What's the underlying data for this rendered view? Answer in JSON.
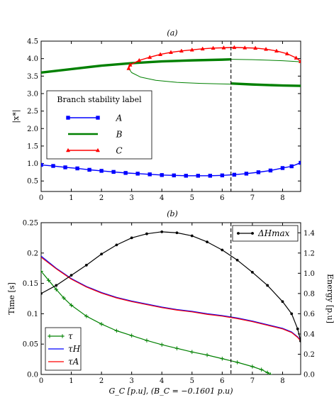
{
  "chart_data": [
    {
      "panel": "(a)",
      "type": "line",
      "title": "(a)",
      "xlabel": "",
      "ylabel": "|x*|",
      "xlim": [
        0,
        8.6
      ],
      "ylim": [
        0.2,
        4.5
      ],
      "xticks": [
        "0",
        "1",
        "2",
        "3",
        "4",
        "5",
        "6",
        "7",
        "8"
      ],
      "yticks": [
        "0.5",
        "1.0",
        "1.5",
        "2.0",
        "2.5",
        "3.0",
        "3.5",
        "4.0",
        "4.5"
      ],
      "vline_x": 6.29,
      "legend": {
        "title": "Branch stability label",
        "placement": "center-left",
        "entries": [
          "A",
          "B",
          "C"
        ]
      },
      "colors": {
        "A": "#0000ff",
        "B": "#008000",
        "C": "#ff0000"
      },
      "series": [
        {
          "name": "A",
          "marker": "square",
          "x": [
            0,
            0.4,
            0.8,
            1.2,
            1.6,
            2.0,
            2.4,
            2.8,
            3.2,
            3.6,
            4.0,
            4.4,
            4.8,
            5.2,
            5.6,
            6.0,
            6.4,
            6.8,
            7.2,
            7.6,
            8.0,
            8.3,
            8.6
          ],
          "y": [
            0.96,
            0.93,
            0.89,
            0.86,
            0.82,
            0.79,
            0.76,
            0.73,
            0.71,
            0.69,
            0.67,
            0.66,
            0.65,
            0.65,
            0.65,
            0.66,
            0.68,
            0.71,
            0.75,
            0.8,
            0.87,
            0.92,
            1.02
          ]
        },
        {
          "name": "B stable upper",
          "x": [
            0,
            1,
            2,
            3,
            4,
            5,
            6,
            6.29
          ],
          "y": [
            3.6,
            3.7,
            3.8,
            3.87,
            3.92,
            3.95,
            3.97,
            3.98
          ]
        },
        {
          "name": "B unstable upper",
          "x": [
            6.29,
            7,
            8,
            8.6
          ],
          "y": [
            3.98,
            3.97,
            3.94,
            3.91
          ]
        },
        {
          "name": "B unstable lower",
          "x": [
            2.9,
            3.0,
            3.3,
            3.8,
            4.5,
            5.3,
            6.29
          ],
          "y": [
            3.72,
            3.6,
            3.47,
            3.38,
            3.32,
            3.29,
            3.27
          ]
        },
        {
          "name": "B stable lower",
          "x": [
            6.29,
            7,
            8,
            8.6
          ],
          "y": [
            3.29,
            3.26,
            3.23,
            3.22
          ]
        },
        {
          "name": "C",
          "marker": "triangle",
          "x": [
            2.9,
            2.95,
            3.25,
            3.6,
            3.95,
            4.3,
            4.65,
            5.0,
            5.35,
            5.7,
            6.05,
            6.4,
            6.75,
            7.1,
            7.45,
            7.8,
            8.15,
            8.45,
            8.6
          ],
          "y": [
            3.72,
            3.82,
            3.95,
            4.04,
            4.12,
            4.18,
            4.22,
            4.25,
            4.28,
            4.3,
            4.31,
            4.32,
            4.31,
            4.3,
            4.27,
            4.22,
            4.14,
            4.02,
            3.92
          ]
        }
      ]
    },
    {
      "panel": "(b)",
      "type": "line",
      "title": "(b)",
      "xlabel": "G_C [p.u], (B_C = −0.1601 p.u)",
      "ylabel": "Time [s]",
      "ylabel_right": "Energy [p.u]",
      "xlim": [
        0,
        8.6
      ],
      "ylim": [
        0,
        0.25
      ],
      "ylim_right": [
        0,
        1.5
      ],
      "xticks": [
        "0",
        "1",
        "2",
        "3",
        "4",
        "5",
        "6",
        "7",
        "8"
      ],
      "yticks": [
        "0.0",
        "0.05",
        "0.1",
        "0.15",
        "0.2",
        "0.25"
      ],
      "yticks_right": [
        "0.0",
        "0.2",
        "0.4",
        "0.6",
        "0.8",
        "1.0",
        "1.2",
        "1.4"
      ],
      "vline_x": 6.29,
      "legend_left": {
        "placement": "lower-left",
        "entries": [
          "τ",
          "τH",
          "τA"
        ]
      },
      "legend_right": {
        "placement": "upper-right",
        "entries": [
          "ΔHmax"
        ]
      },
      "colors": {
        "tau": "#008000",
        "tauH": "#0000ff",
        "tauA": "#ff0000",
        "dH": "#000000"
      },
      "series": [
        {
          "name": "τ",
          "axis": "left",
          "marker": "plus",
          "x": [
            0,
            0.25,
            0.5,
            0.75,
            1.0,
            1.5,
            2.0,
            2.5,
            3.0,
            3.5,
            4.0,
            4.5,
            5.0,
            5.5,
            6.0,
            6.5,
            7.0,
            7.3,
            7.5,
            7.6
          ],
          "y": [
            0.17,
            0.155,
            0.14,
            0.126,
            0.114,
            0.096,
            0.083,
            0.072,
            0.064,
            0.056,
            0.049,
            0.043,
            0.037,
            0.032,
            0.026,
            0.02,
            0.013,
            0.008,
            0.003,
            0.0
          ]
        },
        {
          "name": "τH",
          "axis": "left",
          "x": [
            0,
            0.5,
            1.0,
            1.5,
            2.0,
            2.5,
            3.0,
            3.5,
            4.0,
            4.5,
            5.0,
            5.5,
            6.0,
            6.5,
            7.0,
            7.5,
            8.0,
            8.3,
            8.5,
            8.6
          ],
          "y": [
            0.195,
            0.175,
            0.158,
            0.145,
            0.135,
            0.127,
            0.121,
            0.116,
            0.111,
            0.107,
            0.104,
            0.1,
            0.097,
            0.093,
            0.088,
            0.082,
            0.076,
            0.07,
            0.062,
            0.056
          ]
        },
        {
          "name": "τA",
          "axis": "left",
          "x": [
            0,
            0.5,
            1.0,
            1.5,
            2.0,
            2.5,
            3.0,
            3.5,
            4.0,
            4.5,
            5.0,
            5.5,
            6.0,
            6.5,
            7.0,
            7.5,
            8.0,
            8.3,
            8.5,
            8.6
          ],
          "y": [
            0.193,
            0.174,
            0.157,
            0.144,
            0.134,
            0.126,
            0.12,
            0.115,
            0.11,
            0.106,
            0.103,
            0.099,
            0.096,
            0.092,
            0.087,
            0.081,
            0.075,
            0.069,
            0.061,
            0.055
          ]
        },
        {
          "name": "ΔHmax",
          "axis": "right",
          "marker": "dot",
          "x": [
            0,
            0.5,
            1.0,
            1.5,
            2.0,
            2.5,
            3.0,
            3.5,
            4.0,
            4.5,
            5.0,
            5.5,
            6.0,
            6.5,
            7.0,
            7.5,
            8.0,
            8.3,
            8.5,
            8.6
          ],
          "y": [
            0.8,
            0.88,
            0.98,
            1.08,
            1.19,
            1.28,
            1.35,
            1.39,
            1.41,
            1.4,
            1.37,
            1.31,
            1.23,
            1.13,
            1.01,
            0.88,
            0.72,
            0.6,
            0.45,
            0.33
          ]
        }
      ]
    }
  ]
}
